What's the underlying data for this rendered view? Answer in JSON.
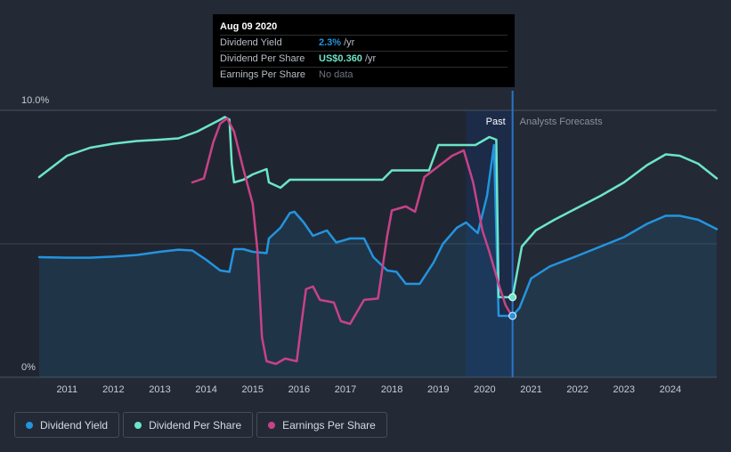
{
  "tooltip": {
    "date": "Aug 09 2020",
    "rows": [
      {
        "label": "Dividend Yield",
        "value": "2.3%",
        "unit": "/yr",
        "color": "#2394df"
      },
      {
        "label": "Dividend Per Share",
        "value": "US$0.360",
        "unit": "/yr",
        "color": "#6ce5c8"
      },
      {
        "label": "Earnings Per Share",
        "value": "No data",
        "unit": "",
        "color": "#6d7480"
      }
    ]
  },
  "legend": [
    {
      "label": "Dividend Yield",
      "color": "#2394df"
    },
    {
      "label": "Dividend Per Share",
      "color": "#6ce5c8"
    },
    {
      "label": "Earnings Per Share",
      "color": "#c84288"
    }
  ],
  "chart_data": {
    "type": "line",
    "x_ticks": [
      "2011",
      "2012",
      "2013",
      "2014",
      "2015",
      "2016",
      "2017",
      "2018",
      "2019",
      "2020",
      "2021",
      "2022",
      "2023",
      "2024"
    ],
    "y_ticks": [
      "10.0%",
      "0%"
    ],
    "ylim": [
      0,
      10
    ],
    "xlim": [
      2010.4,
      2025.0
    ],
    "past_label": "Past",
    "forecast_label": "Analysts Forecasts",
    "past_boundary": 2020.6,
    "highlight_range": [
      2019.6,
      2020.6
    ],
    "series": [
      {
        "name": "Dividend Yield",
        "color": "#2394df",
        "area": true,
        "points": [
          [
            2010.4,
            4.5
          ],
          [
            2011.0,
            4.48
          ],
          [
            2011.5,
            4.48
          ],
          [
            2012.0,
            4.52
          ],
          [
            2012.5,
            4.58
          ],
          [
            2013.0,
            4.7
          ],
          [
            2013.4,
            4.78
          ],
          [
            2013.7,
            4.75
          ],
          [
            2014.0,
            4.4
          ],
          [
            2014.3,
            4.0
          ],
          [
            2014.5,
            3.95
          ],
          [
            2014.6,
            4.8
          ],
          [
            2014.8,
            4.8
          ],
          [
            2015.0,
            4.7
          ],
          [
            2015.3,
            4.65
          ],
          [
            2015.35,
            5.2
          ],
          [
            2015.6,
            5.6
          ],
          [
            2015.8,
            6.15
          ],
          [
            2015.9,
            6.2
          ],
          [
            2016.1,
            5.8
          ],
          [
            2016.3,
            5.3
          ],
          [
            2016.6,
            5.5
          ],
          [
            2016.8,
            5.05
          ],
          [
            2017.1,
            5.2
          ],
          [
            2017.4,
            5.2
          ],
          [
            2017.6,
            4.5
          ],
          [
            2017.9,
            4.0
          ],
          [
            2018.1,
            3.95
          ],
          [
            2018.3,
            3.5
          ],
          [
            2018.6,
            3.5
          ],
          [
            2018.9,
            4.3
          ],
          [
            2019.1,
            5.0
          ],
          [
            2019.4,
            5.6
          ],
          [
            2019.6,
            5.8
          ],
          [
            2019.85,
            5.4
          ],
          [
            2020.05,
            6.8
          ],
          [
            2020.2,
            8.7
          ],
          [
            2020.3,
            2.3
          ],
          [
            2020.6,
            2.3
          ],
          [
            2020.75,
            2.6
          ],
          [
            2021.0,
            3.7
          ],
          [
            2021.4,
            4.15
          ],
          [
            2022.0,
            4.55
          ],
          [
            2022.5,
            4.9
          ],
          [
            2023.0,
            5.25
          ],
          [
            2023.5,
            5.75
          ],
          [
            2023.9,
            6.05
          ],
          [
            2024.2,
            6.05
          ],
          [
            2024.6,
            5.9
          ],
          [
            2025.0,
            5.55
          ]
        ],
        "marker": [
          2020.6,
          2.3
        ]
      },
      {
        "name": "Dividend Per Share",
        "color": "#6ce5c8",
        "area": false,
        "points": [
          [
            2010.4,
            7.5
          ],
          [
            2011.0,
            8.3
          ],
          [
            2011.5,
            8.6
          ],
          [
            2012.0,
            8.75
          ],
          [
            2012.5,
            8.85
          ],
          [
            2013.0,
            8.9
          ],
          [
            2013.4,
            8.95
          ],
          [
            2013.8,
            9.2
          ],
          [
            2014.3,
            9.65
          ],
          [
            2014.4,
            9.75
          ],
          [
            2014.5,
            9.65
          ],
          [
            2014.55,
            8.0
          ],
          [
            2014.6,
            7.3
          ],
          [
            2014.8,
            7.4
          ],
          [
            2015.0,
            7.6
          ],
          [
            2015.3,
            7.8
          ],
          [
            2015.35,
            7.3
          ],
          [
            2015.6,
            7.1
          ],
          [
            2015.8,
            7.4
          ],
          [
            2016.0,
            7.4
          ],
          [
            2017.0,
            7.4
          ],
          [
            2017.8,
            7.4
          ],
          [
            2018.0,
            7.75
          ],
          [
            2018.8,
            7.75
          ],
          [
            2019.0,
            8.7
          ],
          [
            2019.8,
            8.7
          ],
          [
            2020.1,
            9.0
          ],
          [
            2020.25,
            8.9
          ],
          [
            2020.3,
            3.0
          ],
          [
            2020.6,
            3.0
          ],
          [
            2020.8,
            4.9
          ],
          [
            2021.1,
            5.5
          ],
          [
            2021.5,
            5.9
          ],
          [
            2022.0,
            6.35
          ],
          [
            2022.5,
            6.8
          ],
          [
            2023.0,
            7.3
          ],
          [
            2023.5,
            7.95
          ],
          [
            2023.9,
            8.35
          ],
          [
            2024.2,
            8.3
          ],
          [
            2024.6,
            8.0
          ],
          [
            2025.0,
            7.45
          ]
        ],
        "marker": [
          2020.6,
          3.0
        ]
      },
      {
        "name": "Earnings Per Share",
        "color": "#c84288",
        "area": false,
        "points": [
          [
            2013.7,
            7.3
          ],
          [
            2013.95,
            7.45
          ],
          [
            2014.15,
            8.8
          ],
          [
            2014.3,
            9.5
          ],
          [
            2014.45,
            9.7
          ],
          [
            2014.6,
            9.2
          ],
          [
            2014.8,
            7.8
          ],
          [
            2015.0,
            6.5
          ],
          [
            2015.1,
            4.8
          ],
          [
            2015.2,
            1.5
          ],
          [
            2015.3,
            0.6
          ],
          [
            2015.5,
            0.5
          ],
          [
            2015.7,
            0.7
          ],
          [
            2015.95,
            0.6
          ],
          [
            2016.05,
            2.0
          ],
          [
            2016.15,
            3.3
          ],
          [
            2016.3,
            3.4
          ],
          [
            2016.45,
            2.9
          ],
          [
            2016.75,
            2.8
          ],
          [
            2016.9,
            2.1
          ],
          [
            2017.1,
            2.0
          ],
          [
            2017.4,
            2.9
          ],
          [
            2017.7,
            2.95
          ],
          [
            2017.9,
            5.3
          ],
          [
            2018.0,
            6.25
          ],
          [
            2018.3,
            6.4
          ],
          [
            2018.5,
            6.2
          ],
          [
            2018.7,
            7.5
          ],
          [
            2019.0,
            7.9
          ],
          [
            2019.3,
            8.3
          ],
          [
            2019.55,
            8.5
          ],
          [
            2019.75,
            7.3
          ],
          [
            2019.95,
            5.5
          ],
          [
            2020.1,
            4.7
          ],
          [
            2020.3,
            3.5
          ],
          [
            2020.45,
            2.7
          ],
          [
            2020.55,
            2.4
          ]
        ],
        "marker": null
      }
    ]
  }
}
